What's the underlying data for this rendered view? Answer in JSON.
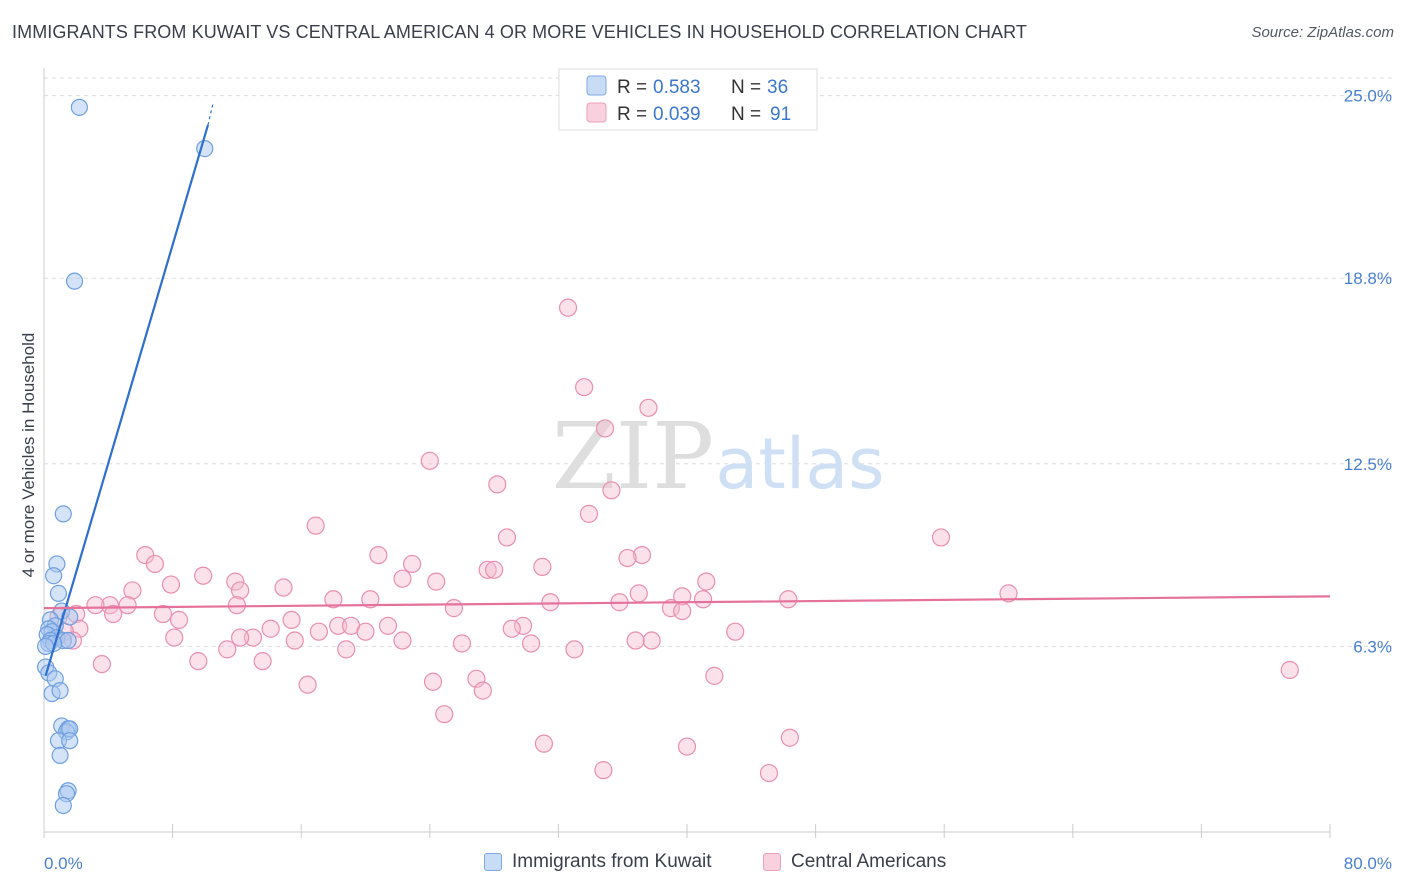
{
  "header": {
    "title": "IMMIGRANTS FROM KUWAIT VS CENTRAL AMERICAN 4 OR MORE VEHICLES IN HOUSEHOLD CORRELATION CHART",
    "source": "Source: ZipAtlas.com"
  },
  "watermark": {
    "zip": "ZIP",
    "atlas": "atlas"
  },
  "legend_top": [
    {
      "r_label": "R =",
      "r_value": "0.583",
      "n_label": "N =",
      "n_value": "36"
    },
    {
      "r_label": "R =",
      "r_value": "0.039",
      "n_label": "N =",
      "n_value": "91"
    }
  ],
  "colors": {
    "blue_fill": "#a9c8f0",
    "blue_stroke": "#6f9fde",
    "blue_line": "#2e6fcf",
    "pink_fill": "#f5bcd0",
    "pink_stroke": "#e98fb0",
    "pink_line": "#e5729b",
    "tick_text": "#4a7fcf",
    "grid": "#dddddd"
  },
  "chart_data": {
    "type": "scatter",
    "title": "IMMIGRANTS FROM KUWAIT VS CENTRAL AMERICAN 4 OR MORE VEHICLES IN HOUSEHOLD CORRELATION CHART",
    "xlabel": "",
    "ylabel": "4 or more Vehicles in Household",
    "xlim": [
      0,
      80
    ],
    "ylim": [
      0,
      25.8
    ],
    "x_tick_labels": [
      "0.0%",
      "80.0%"
    ],
    "y_ticks": [
      6.3,
      12.5,
      18.8,
      25.0
    ],
    "y_tick_labels": [
      "6.3%",
      "12.5%",
      "18.8%",
      "25.0%"
    ],
    "grid": true,
    "legend": "top-center",
    "series": [
      {
        "name": "Immigrants from Kuwait",
        "r": 0.583,
        "n": 36,
        "trend": {
          "x": [
            0.1,
            10.2
          ],
          "y": [
            5.3,
            24.0
          ],
          "dashed_to": [
            10.5,
            24.7
          ]
        },
        "points": [
          [
            2.2,
            24.6
          ],
          [
            10.0,
            23.2
          ],
          [
            1.9,
            18.7
          ],
          [
            1.2,
            10.8
          ],
          [
            0.8,
            9.1
          ],
          [
            0.6,
            8.7
          ],
          [
            0.9,
            8.1
          ],
          [
            1.1,
            7.5
          ],
          [
            1.6,
            7.3
          ],
          [
            0.4,
            7.2
          ],
          [
            0.7,
            7.0
          ],
          [
            0.3,
            6.9
          ],
          [
            0.5,
            6.8
          ],
          [
            0.2,
            6.7
          ],
          [
            0.8,
            6.6
          ],
          [
            0.4,
            6.5
          ],
          [
            1.2,
            6.5
          ],
          [
            1.5,
            6.5
          ],
          [
            0.3,
            6.4
          ],
          [
            0.6,
            6.4
          ],
          [
            0.1,
            5.6
          ],
          [
            0.3,
            5.4
          ],
          [
            0.7,
            5.2
          ],
          [
            0.5,
            4.7
          ],
          [
            1.0,
            4.8
          ],
          [
            1.1,
            3.6
          ],
          [
            1.5,
            3.5
          ],
          [
            1.4,
            3.4
          ],
          [
            1.6,
            3.5
          ],
          [
            0.9,
            3.1
          ],
          [
            1.6,
            3.1
          ],
          [
            1.0,
            2.6
          ],
          [
            1.5,
            1.4
          ],
          [
            1.4,
            1.3
          ],
          [
            1.2,
            0.9
          ],
          [
            0.1,
            6.3
          ]
        ]
      },
      {
        "name": "Central Americans",
        "r": 0.039,
        "n": 91,
        "trend": {
          "x": [
            0.0,
            80.0
          ],
          "y": [
            7.6,
            8.0
          ]
        },
        "points": [
          [
            32.6,
            17.8
          ],
          [
            33.6,
            15.1
          ],
          [
            37.6,
            14.4
          ],
          [
            34.9,
            13.7
          ],
          [
            24.0,
            12.6
          ],
          [
            28.2,
            11.8
          ],
          [
            35.3,
            11.6
          ],
          [
            33.9,
            10.8
          ],
          [
            16.9,
            10.4
          ],
          [
            28.8,
            10.0
          ],
          [
            55.8,
            10.0
          ],
          [
            6.3,
            9.4
          ],
          [
            20.8,
            9.4
          ],
          [
            37.2,
            9.4
          ],
          [
            36.3,
            9.3
          ],
          [
            22.9,
            9.1
          ],
          [
            6.9,
            9.1
          ],
          [
            31.0,
            9.0
          ],
          [
            27.6,
            8.9
          ],
          [
            28.0,
            8.9
          ],
          [
            9.9,
            8.7
          ],
          [
            22.3,
            8.6
          ],
          [
            24.4,
            8.5
          ],
          [
            11.9,
            8.5
          ],
          [
            41.2,
            8.5
          ],
          [
            7.9,
            8.4
          ],
          [
            14.9,
            8.3
          ],
          [
            12.2,
            8.2
          ],
          [
            5.5,
            8.2
          ],
          [
            37.0,
            8.1
          ],
          [
            39.7,
            8.0
          ],
          [
            60.0,
            8.1
          ],
          [
            41.0,
            7.9
          ],
          [
            18.0,
            7.9
          ],
          [
            20.3,
            7.9
          ],
          [
            31.5,
            7.8
          ],
          [
            46.3,
            7.9
          ],
          [
            4.1,
            7.7
          ],
          [
            35.8,
            7.8
          ],
          [
            5.2,
            7.7
          ],
          [
            3.2,
            7.7
          ],
          [
            12.0,
            7.7
          ],
          [
            25.5,
            7.6
          ],
          [
            39.0,
            7.6
          ],
          [
            39.7,
            7.5
          ],
          [
            7.4,
            7.4
          ],
          [
            4.3,
            7.4
          ],
          [
            2.0,
            7.4
          ],
          [
            8.4,
            7.2
          ],
          [
            15.4,
            7.2
          ],
          [
            18.3,
            7.0
          ],
          [
            19.1,
            7.0
          ],
          [
            21.4,
            7.0
          ],
          [
            29.8,
            7.0
          ],
          [
            29.1,
            6.9
          ],
          [
            14.1,
            6.9
          ],
          [
            17.1,
            6.8
          ],
          [
            20.0,
            6.8
          ],
          [
            43.0,
            6.8
          ],
          [
            2.2,
            6.9
          ],
          [
            1.3,
            6.8
          ],
          [
            8.1,
            6.6
          ],
          [
            13.0,
            6.6
          ],
          [
            12.2,
            6.6
          ],
          [
            15.6,
            6.5
          ],
          [
            22.3,
            6.5
          ],
          [
            37.8,
            6.5
          ],
          [
            36.8,
            6.5
          ],
          [
            26.0,
            6.4
          ],
          [
            30.3,
            6.4
          ],
          [
            11.4,
            6.2
          ],
          [
            18.8,
            6.2
          ],
          [
            33.0,
            6.2
          ],
          [
            9.6,
            5.8
          ],
          [
            13.6,
            5.8
          ],
          [
            3.6,
            5.7
          ],
          [
            77.5,
            5.5
          ],
          [
            41.7,
            5.3
          ],
          [
            24.2,
            5.1
          ],
          [
            26.9,
            5.2
          ],
          [
            16.4,
            5.0
          ],
          [
            27.3,
            4.8
          ],
          [
            24.9,
            4.0
          ],
          [
            46.4,
            3.2
          ],
          [
            31.1,
            3.0
          ],
          [
            40.0,
            2.9
          ],
          [
            34.8,
            2.1
          ],
          [
            45.1,
            2.0
          ],
          [
            1.8,
            6.5
          ],
          [
            0.9,
            7.3
          ],
          [
            0.6,
            6.6
          ]
        ]
      }
    ]
  },
  "bottom_legend": [
    {
      "label": "Immigrants from Kuwait"
    },
    {
      "label": "Central Americans"
    }
  ]
}
